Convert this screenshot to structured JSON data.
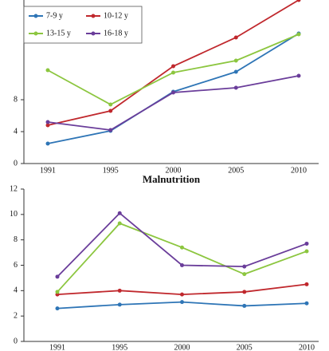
{
  "chart_data": [
    {
      "type": "line",
      "categories": [
        "1991",
        "1995",
        "2000",
        "2005",
        "2010"
      ],
      "series": [
        {
          "name": "7-9 y",
          "color": "#2e75b6",
          "values": [
            2.5,
            4.1,
            9,
            11.5,
            16.3
          ]
        },
        {
          "name": "10-12 y",
          "color": "#c0282d",
          "values": [
            4.8,
            6.6,
            12.2,
            15.8,
            20.5
          ]
        },
        {
          "name": "13-15 y",
          "color": "#8cc63f",
          "values": [
            11.7,
            7.4,
            11.4,
            12.9,
            16.2
          ]
        },
        {
          "name": "16-18 y",
          "color": "#6a3d9a",
          "values": [
            5.2,
            4.2,
            8.9,
            9.5,
            11
          ]
        }
      ],
      "ylim": [
        0,
        20.5
      ],
      "yticks": [
        0,
        4,
        8
      ],
      "legend": "top-left"
    },
    {
      "type": "line",
      "title": "Malnutrition",
      "categories": [
        "1991",
        "1995",
        "2000",
        "2005",
        "2010"
      ],
      "series": [
        {
          "color": "#2e75b6",
          "values": [
            2.6,
            2.9,
            3.1,
            2.8,
            3.0
          ]
        },
        {
          "color": "#c0282d",
          "values": [
            3.7,
            4.0,
            3.7,
            3.9,
            4.5
          ]
        },
        {
          "color": "#8cc63f",
          "values": [
            3.9,
            9.3,
            7.4,
            5.3,
            7.1
          ]
        },
        {
          "color": "#6a3d9a",
          "values": [
            5.1,
            10.1,
            6.0,
            5.9,
            7.7
          ]
        }
      ],
      "ylim": [
        0,
        12
      ],
      "yticks": [
        0,
        2,
        4,
        6,
        8,
        10,
        12
      ]
    }
  ]
}
